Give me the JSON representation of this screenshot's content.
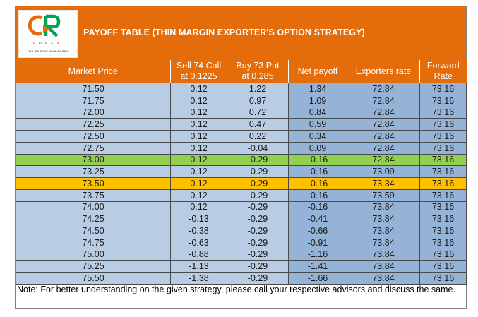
{
  "header": {
    "title": "PAYOFF TABLE (THIN MARGIN EXPORTER'S OPTION STRATEGY)",
    "logo": {
      "word": "FOREX",
      "tagline": "THE FX RISK MANAGERS",
      "colors": {
        "orange": "#e46c0a",
        "green": "#00a651"
      }
    }
  },
  "table": {
    "columns": {
      "market_price": "Market Price",
      "sell_call_line1": "Sell 74 Call",
      "sell_call_line2": "at 0.1225",
      "buy_put_line1": "Buy 73 Put",
      "buy_put_line2": "at 0.285",
      "net_payoff": "Net payoff",
      "exporters_rate": "Exporters rate",
      "forward_line1": "Forward",
      "forward_line2": "Rate"
    },
    "rows": [
      {
        "market_price": "71.50",
        "sell_call": "0.12",
        "buy_put": "1.22",
        "net_payoff": "1.34",
        "exporters_rate": "72.84",
        "forward_rate": "73.16"
      },
      {
        "market_price": "71.75",
        "sell_call": "0.12",
        "buy_put": "0.97",
        "net_payoff": "1.09",
        "exporters_rate": "72.84",
        "forward_rate": "73.16"
      },
      {
        "market_price": "72.00",
        "sell_call": "0.12",
        "buy_put": "0.72",
        "net_payoff": "0.84",
        "exporters_rate": "72.84",
        "forward_rate": "73.16"
      },
      {
        "market_price": "72.25",
        "sell_call": "0.12",
        "buy_put": "0.47",
        "net_payoff": "0.59",
        "exporters_rate": "72.84",
        "forward_rate": "73.16"
      },
      {
        "market_price": "72.50",
        "sell_call": "0.12",
        "buy_put": "0.22",
        "net_payoff": "0.34",
        "exporters_rate": "72.84",
        "forward_rate": "73.16"
      },
      {
        "market_price": "72.75",
        "sell_call": "0.12",
        "buy_put": "-0.04",
        "net_payoff": "0.09",
        "exporters_rate": "72.84",
        "forward_rate": "73.16"
      },
      {
        "market_price": "73.00",
        "sell_call": "0.12",
        "buy_put": "-0.29",
        "net_payoff": "-0.16",
        "exporters_rate": "72.84",
        "forward_rate": "73.16"
      },
      {
        "market_price": "73.25",
        "sell_call": "0.12",
        "buy_put": "-0.29",
        "net_payoff": "-0.16",
        "exporters_rate": "73.09",
        "forward_rate": "73.16"
      },
      {
        "market_price": "73.50",
        "sell_call": "0.12",
        "buy_put": "-0.29",
        "net_payoff": "-0.16",
        "exporters_rate": "73.34",
        "forward_rate": "73.16"
      },
      {
        "market_price": "73.75",
        "sell_call": "0.12",
        "buy_put": "-0.29",
        "net_payoff": "-0.16",
        "exporters_rate": "73.59",
        "forward_rate": "73.16"
      },
      {
        "market_price": "74.00",
        "sell_call": "0.12",
        "buy_put": "-0.29",
        "net_payoff": "-0.16",
        "exporters_rate": "73.84",
        "forward_rate": "73.16"
      },
      {
        "market_price": "74.25",
        "sell_call": "-0.13",
        "buy_put": "-0.29",
        "net_payoff": "-0.41",
        "exporters_rate": "73.84",
        "forward_rate": "73.16"
      },
      {
        "market_price": "74.50",
        "sell_call": "-0.38",
        "buy_put": "-0.29",
        "net_payoff": "-0.66",
        "exporters_rate": "73.84",
        "forward_rate": "73.16"
      },
      {
        "market_price": "74.75",
        "sell_call": "-0.63",
        "buy_put": "-0.29",
        "net_payoff": "-0.91",
        "exporters_rate": "73.84",
        "forward_rate": "73.16"
      },
      {
        "market_price": "75.00",
        "sell_call": "-0.88",
        "buy_put": "-0.29",
        "net_payoff": "-1.16",
        "exporters_rate": "73.84",
        "forward_rate": "73.16"
      },
      {
        "market_price": "75.25",
        "sell_call": "-1.13",
        "buy_put": "-0.29",
        "net_payoff": "-1.41",
        "exporters_rate": "73.84",
        "forward_rate": "73.16"
      },
      {
        "market_price": "75.50",
        "sell_call": "-1.38",
        "buy_put": "-0.29",
        "net_payoff": "-1.66",
        "exporters_rate": "73.84",
        "forward_rate": "73.16"
      }
    ],
    "highlight": {
      "green_row_index": 6,
      "amber_row_index": 8,
      "colors": {
        "green": "#92d050",
        "amber": "#ffc000",
        "header": "#e46c0a",
        "row": "#b8cce4",
        "row_dark": "#95b3d7"
      }
    }
  },
  "note": "Note: For better understanding on the given strategy, please call your respective advisors and discuss the same."
}
